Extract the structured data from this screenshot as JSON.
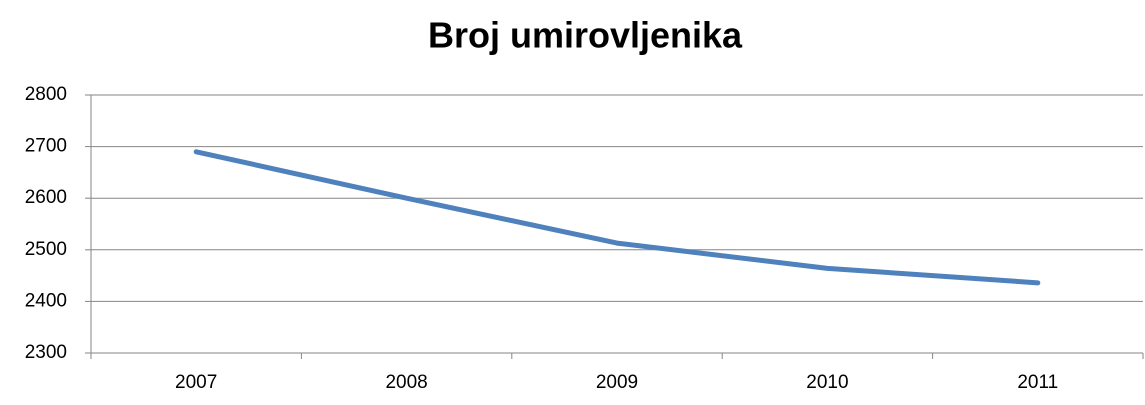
{
  "chart_data": {
    "type": "line",
    "title": "Broj umirovljenika",
    "categories": [
      "2007",
      "2008",
      "2009",
      "2010",
      "2011"
    ],
    "series": [
      {
        "name": "Broj umirovljenika",
        "color": "#4f81bd",
        "values": [
          2690,
          2600,
          2513,
          2464,
          2436
        ]
      }
    ],
    "ylim": [
      2300,
      2800
    ],
    "yticks": [
      2300,
      2400,
      2500,
      2600,
      2700,
      2800
    ],
    "grid": true
  }
}
